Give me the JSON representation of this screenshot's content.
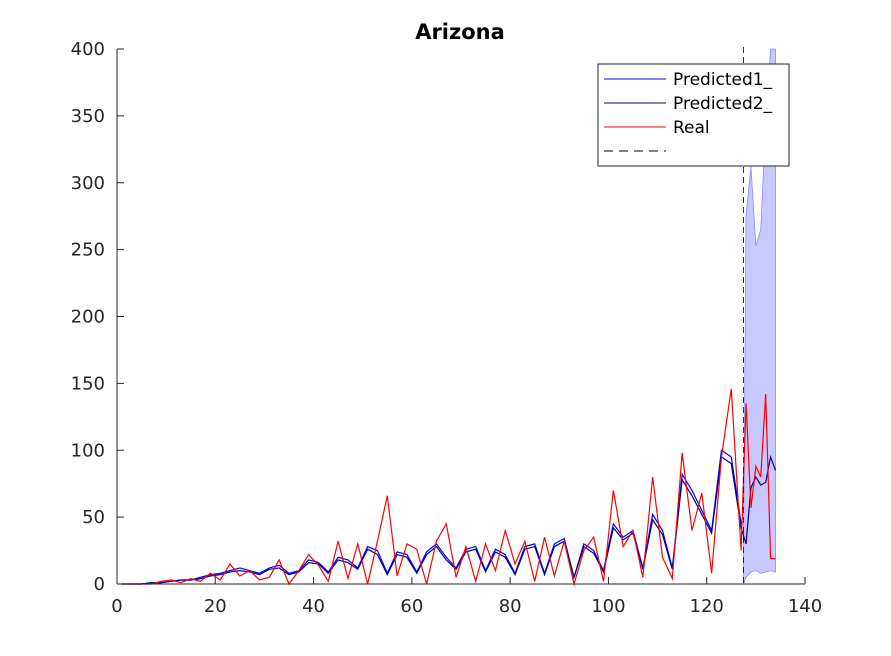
{
  "chart_data": {
    "type": "line",
    "title": "Arizona",
    "xlabel": "",
    "ylabel": "",
    "xlim": [
      0,
      140
    ],
    "ylim": [
      0,
      400
    ],
    "xticks": [
      0,
      20,
      40,
      60,
      80,
      100,
      120,
      140
    ],
    "yticks": [
      0,
      50,
      100,
      150,
      200,
      250,
      300,
      350,
      400
    ],
    "legend_position": "top-right",
    "grid": false,
    "vline_x": 127.5,
    "series": [
      {
        "name": "Predicted1_",
        "color": "#0000ff",
        "x": [
          1,
          3,
          5,
          7,
          9,
          11,
          13,
          15,
          17,
          19,
          21,
          23,
          25,
          27,
          29,
          31,
          33,
          35,
          37,
          39,
          41,
          43,
          45,
          47,
          49,
          51,
          53,
          55,
          57,
          59,
          61,
          63,
          65,
          67,
          69,
          71,
          73,
          75,
          77,
          79,
          81,
          83,
          85,
          87,
          89,
          91,
          93,
          95,
          97,
          99,
          101,
          103,
          105,
          107,
          109,
          111,
          113,
          115,
          117,
          119,
          121,
          123,
          125,
          127
        ],
        "y": [
          0,
          0,
          0,
          1,
          1,
          2,
          3,
          3,
          5,
          7,
          8,
          10,
          12,
          10,
          8,
          12,
          14,
          8,
          10,
          18,
          16,
          9,
          20,
          18,
          12,
          28,
          25,
          8,
          24,
          22,
          9,
          24,
          30,
          20,
          12,
          26,
          28,
          10,
          26,
          22,
          8,
          28,
          30,
          8,
          30,
          34,
          5,
          30,
          25,
          10,
          45,
          35,
          40,
          12,
          52,
          40,
          12,
          82,
          70,
          55,
          40,
          100,
          95,
          45
        ]
      },
      {
        "name": "Predicted2_",
        "color": "#00008b",
        "x": [
          1,
          3,
          5,
          7,
          9,
          11,
          13,
          15,
          17,
          19,
          21,
          23,
          25,
          27,
          29,
          31,
          33,
          35,
          37,
          39,
          41,
          43,
          45,
          47,
          49,
          51,
          53,
          55,
          57,
          59,
          61,
          63,
          65,
          67,
          69,
          71,
          73,
          75,
          77,
          79,
          81,
          83,
          85,
          87,
          89,
          91,
          93,
          95,
          97,
          99,
          101,
          103,
          105,
          107,
          109,
          111,
          113,
          115,
          117,
          119,
          121,
          123,
          125,
          127,
          128,
          129,
          130,
          131,
          132,
          133,
          134
        ],
        "y": [
          0,
          0,
          0,
          1,
          1,
          2,
          3,
          3,
          4,
          6,
          7,
          9,
          10,
          9,
          7,
          11,
          12,
          7,
          9,
          16,
          15,
          8,
          18,
          16,
          11,
          26,
          22,
          7,
          22,
          20,
          8,
          22,
          28,
          18,
          11,
          24,
          26,
          9,
          24,
          20,
          7,
          26,
          28,
          7,
          28,
          32,
          5,
          28,
          23,
          9,
          42,
          33,
          38,
          11,
          48,
          37,
          11,
          78,
          66,
          52,
          38,
          95,
          90,
          42,
          30,
          72,
          80,
          74,
          76,
          95,
          85
        ]
      },
      {
        "name": "Real",
        "color": "#ff0000",
        "x": [
          1,
          3,
          5,
          7,
          9,
          11,
          13,
          15,
          17,
          19,
          21,
          23,
          25,
          27,
          29,
          31,
          33,
          35,
          37,
          39,
          41,
          43,
          45,
          47,
          49,
          51,
          53,
          55,
          57,
          59,
          61,
          63,
          65,
          67,
          69,
          71,
          73,
          75,
          77,
          79,
          81,
          83,
          85,
          87,
          89,
          91,
          93,
          95,
          97,
          99,
          101,
          103,
          105,
          107,
          109,
          111,
          113,
          115,
          117,
          119,
          121,
          123,
          125,
          127,
          128,
          129,
          130,
          131,
          132,
          133,
          134
        ],
        "y": [
          0,
          0,
          0,
          0,
          2,
          3,
          1,
          4,
          2,
          8,
          3,
          15,
          6,
          10,
          3,
          5,
          18,
          0,
          10,
          22,
          14,
          2,
          32,
          4,
          30,
          0,
          32,
          66,
          6,
          30,
          26,
          0,
          32,
          45,
          5,
          28,
          2,
          30,
          10,
          40,
          15,
          32,
          2,
          35,
          6,
          32,
          0,
          25,
          35,
          2,
          70,
          28,
          40,
          5,
          80,
          20,
          4,
          98,
          40,
          68,
          8,
          95,
          146,
          25,
          135,
          57,
          88,
          80,
          142,
          19,
          19
        ]
      },
      {
        "name": "",
        "color": "#000000",
        "dashed": true,
        "legend_only": true
      }
    ],
    "band": {
      "x": [
        127.5,
        128,
        129,
        130,
        131,
        132,
        133,
        134
      ],
      "upper": [
        30,
        275,
        312,
        253,
        265,
        345,
        400,
        400
      ],
      "lower": [
        0,
        5,
        9,
        10,
        8,
        9,
        10,
        9
      ],
      "color": "#c8c8ff"
    }
  }
}
